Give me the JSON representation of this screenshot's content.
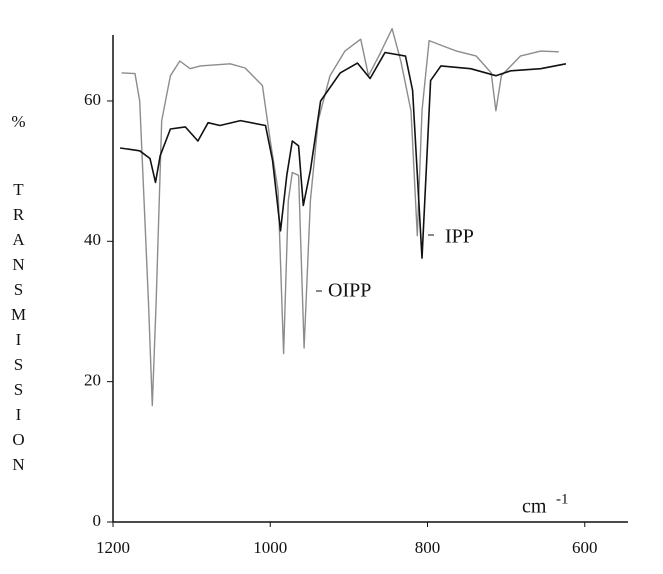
{
  "chart_data": {
    "type": "line",
    "y_label_unit": "%",
    "y_label": "TRANSMISSION",
    "x_label": "cm",
    "x_label_exponent": "-1",
    "xlim": [
      1200,
      545
    ],
    "ylim": [
      0,
      69.4
    ],
    "xticks": [
      1200,
      1000,
      800,
      600
    ],
    "yticks": [
      0,
      20,
      40,
      60
    ],
    "series": [
      {
        "name": "OIPP",
        "color": "#8c8c8c",
        "x": [
          1189,
          1172,
          1166,
          1155,
          1150,
          1145,
          1138,
          1127,
          1115,
          1102,
          1089,
          1051,
          1032,
          1010,
          1000,
          990,
          983,
          977,
          972,
          964,
          957,
          949,
          939,
          924,
          905,
          885,
          875,
          862,
          845,
          834,
          821,
          813,
          807,
          798,
          782,
          763,
          738,
          719,
          713,
          706,
          682,
          656,
          633
        ],
        "values": [
          64.0,
          63.9,
          60,
          31.6,
          16.6,
          31.6,
          57.2,
          63.6,
          65.7,
          64.6,
          65.0,
          65.3,
          64.7,
          62.2,
          54.3,
          47.2,
          24.0,
          45.8,
          49.8,
          49.4,
          24.8,
          45.8,
          57.2,
          63.6,
          67.1,
          68.8,
          63.6,
          66.4,
          70.3,
          65.7,
          58.6,
          40.8,
          58.6,
          68.6,
          67.9,
          67.1,
          66.4,
          64.0,
          58.6,
          63.6,
          66.4,
          67.1,
          67.0
        ]
      },
      {
        "name": "IPP",
        "color": "#111111",
        "x": [
          1191,
          1166,
          1153,
          1146,
          1140,
          1127,
          1108,
          1092,
          1079,
          1064,
          1038,
          1006,
          997,
          987,
          979,
          972,
          964,
          958,
          949,
          936,
          911,
          889,
          873,
          854,
          828,
          819,
          807,
          796,
          783,
          745,
          713,
          694,
          656,
          624
        ],
        "values": [
          53.3,
          52.9,
          51.8,
          48.4,
          52.2,
          56.0,
          56.3,
          54.3,
          56.9,
          56.5,
          57.2,
          56.5,
          51.5,
          41.5,
          49.4,
          54.3,
          53.6,
          45.1,
          50.1,
          60.0,
          64.0,
          65.4,
          63.2,
          66.9,
          66.4,
          61.5,
          37.6,
          62.9,
          65.0,
          64.6,
          63.6,
          64.3,
          64.6,
          65.3
        ]
      }
    ]
  }
}
